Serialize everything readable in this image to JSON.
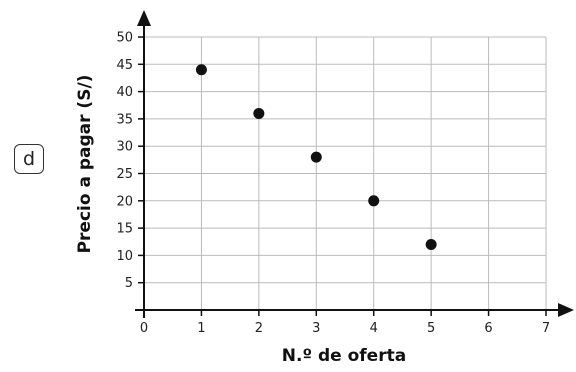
{
  "badge_label": "d",
  "chart_data": {
    "type": "scatter",
    "title": "",
    "xlabel": "N.º de oferta",
    "ylabel": "Precio a pagar (S/)",
    "xlim": [
      0,
      7
    ],
    "ylim": [
      0,
      50
    ],
    "x_ticks": [
      "0",
      "1",
      "2",
      "3",
      "4",
      "5",
      "6",
      "7"
    ],
    "y_ticks": [
      "5",
      "10",
      "15",
      "20",
      "25",
      "30",
      "35",
      "40",
      "45",
      "50"
    ],
    "grid": true,
    "points": [
      {
        "x": 1,
        "y": 44
      },
      {
        "x": 2,
        "y": 36
      },
      {
        "x": 3,
        "y": 28
      },
      {
        "x": 4,
        "y": 20
      },
      {
        "x": 5,
        "y": 12
      }
    ],
    "colors": {
      "point": "#111111",
      "grid": "#bbbbbb",
      "axis": "#111111"
    }
  }
}
